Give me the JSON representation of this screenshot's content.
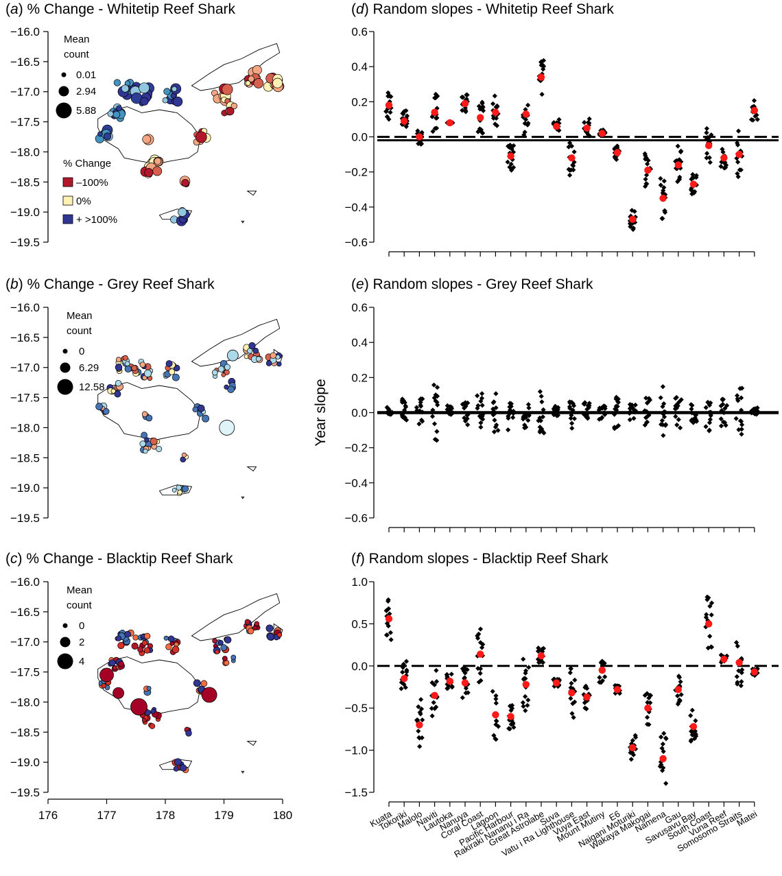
{
  "chart_data": [
    {
      "id": "a",
      "type": "scatter",
      "kind": "map",
      "label": "a",
      "title": "% Change - Whitetip Reef Shark",
      "ylim": [
        -19.5,
        -16.0
      ],
      "xlim": [
        176,
        180
      ],
      "yticks": [
        "−16.0",
        "−16.5",
        "−17.0",
        "−17.5",
        "−18.0",
        "−18.5",
        "−19.0",
        "−19.5"
      ],
      "size_legend": {
        "title": [
          "Mean",
          "count"
        ],
        "entries": [
          "0.01",
          "2.94",
          "5.88"
        ]
      },
      "color_legend": {
        "title": "% Change",
        "entries": [
          "–100%",
          "0%",
          "+ >100%"
        ],
        "colors": [
          "#b2182b",
          "#fdf2b4",
          "#313695"
        ]
      }
    },
    {
      "id": "b",
      "type": "scatter",
      "kind": "map",
      "label": "b",
      "title": "% Change - Grey Reef Shark",
      "ylim": [
        -19.5,
        -16.0
      ],
      "xlim": [
        176,
        180
      ],
      "yticks": [
        "−16.0",
        "−16.5",
        "−17.0",
        "−17.5",
        "−18.0",
        "−18.5",
        "−19.0",
        "−19.5"
      ],
      "size_legend": {
        "title": [
          "Mean",
          "count"
        ],
        "entries": [
          "0",
          "6.29",
          "12.58"
        ]
      }
    },
    {
      "id": "c",
      "type": "scatter",
      "kind": "map",
      "label": "c",
      "title": "% Change - Blacktip Reef Shark",
      "ylim": [
        -19.5,
        -16.0
      ],
      "xlim": [
        176,
        180
      ],
      "yticks": [
        "−16.0",
        "−16.5",
        "−17.0",
        "−17.5",
        "−18.0",
        "−18.5",
        "−19.0",
        "−19.5"
      ],
      "xticks": [
        "176",
        "177",
        "178",
        "179",
        "180"
      ],
      "size_legend": {
        "title": [
          "Mean",
          "count"
        ],
        "entries": [
          "0",
          "2",
          "4"
        ]
      }
    },
    {
      "id": "d",
      "type": "scatter",
      "kind": "slopes",
      "label": "d",
      "title": "Random slopes - Whitetip Reef Shark",
      "ylim": [
        -0.6,
        0.6
      ],
      "yticks": [
        "0.6",
        "0.4",
        "0.2",
        "0.0",
        "−0.2",
        "−0.4",
        "−0.6"
      ],
      "reference_line": "dashed",
      "zero_bar": true,
      "means": [
        0.18,
        0.09,
        0.0,
        0.14,
        0.08,
        0.19,
        0.11,
        0.14,
        -0.11,
        0.13,
        0.34,
        0.06,
        -0.12,
        0.05,
        0.02,
        -0.09,
        -0.47,
        -0.19,
        -0.35,
        -0.16,
        -0.27,
        -0.05,
        -0.12,
        -0.1,
        0.15
      ],
      "spread": [
        0.08,
        0.07,
        0.06,
        0.13,
        0.0,
        0.05,
        0.09,
        0.1,
        0.08,
        0.12,
        0.1,
        0.04,
        0.1,
        0.06,
        0.02,
        0.04,
        0.06,
        0.1,
        0.12,
        0.12,
        0.06,
        0.1,
        0.06,
        0.14,
        0.06
      ]
    },
    {
      "id": "e",
      "type": "scatter",
      "kind": "slopes",
      "label": "e",
      "title": "Random slopes - Grey Reef Shark",
      "ylabel": "Year slope",
      "ylim": [
        -0.6,
        0.6
      ],
      "yticks": [
        "0.6",
        "0.4",
        "0.2",
        "0.0",
        "−0.2",
        "−0.4",
        "−0.6"
      ],
      "reference_line": "solid",
      "means": [
        0.01,
        0.01,
        0.01,
        0.0,
        0.01,
        0.0,
        0.01,
        0.0,
        0.0,
        0.0,
        0.0,
        0.01,
        0.0,
        0.0,
        0.0,
        0.0,
        0.0,
        0.0,
        0.0,
        0.0,
        0.0,
        0.01,
        0.0,
        0.0,
        0.01
      ],
      "spread": [
        0.02,
        0.08,
        0.08,
        0.17,
        0.03,
        0.07,
        0.1,
        0.11,
        0.1,
        0.1,
        0.12,
        0.03,
        0.1,
        0.06,
        0.04,
        0.1,
        0.05,
        0.09,
        0.16,
        0.09,
        0.07,
        0.12,
        0.08,
        0.15,
        0.02
      ]
    },
    {
      "id": "f",
      "type": "scatter",
      "kind": "slopes",
      "label": "f",
      "title": "Random slopes - Blacktip Reef Shark",
      "ylim": [
        -1.5,
        1.0
      ],
      "yticks": [
        "1.0",
        "0.5",
        "0.0",
        "−0.5",
        "−1.0",
        "−1.5"
      ],
      "reference_line": "dashed",
      "categories": [
        "Kuata",
        "Tokoriki",
        "Malolo",
        "Naviti",
        "Lautoka",
        "Nanuya",
        "Coral Coast",
        "Lagoon",
        "Pacific Harbour",
        "Rakiraki Nananu i Ra",
        "Great Astrolabe",
        "Suva",
        "Vatu i Ra Lighthouse",
        "Vuya East",
        "Mount Mutiny",
        "E6",
        "Naigani Moturiki",
        "Wakaya Makogai",
        "Namena",
        "Gau",
        "Savusavu Bay",
        "South Coast",
        "Vuna Reef",
        "Somosomo Straits",
        "Matei"
      ],
      "means": [
        0.56,
        -0.15,
        -0.7,
        -0.35,
        -0.18,
        -0.2,
        0.14,
        -0.58,
        -0.6,
        -0.22,
        0.12,
        -0.2,
        -0.32,
        -0.37,
        -0.05,
        -0.28,
        -0.97,
        -0.5,
        -1.1,
        -0.28,
        -0.72,
        0.5,
        0.08,
        0.04,
        -0.07
      ],
      "spread": [
        0.25,
        0.25,
        0.35,
        0.3,
        0.1,
        0.2,
        0.35,
        0.3,
        0.15,
        0.35,
        0.1,
        0.05,
        0.3,
        0.15,
        0.15,
        0.05,
        0.15,
        0.2,
        0.3,
        0.2,
        0.2,
        0.35,
        0.06,
        0.35,
        0.05
      ]
    }
  ]
}
